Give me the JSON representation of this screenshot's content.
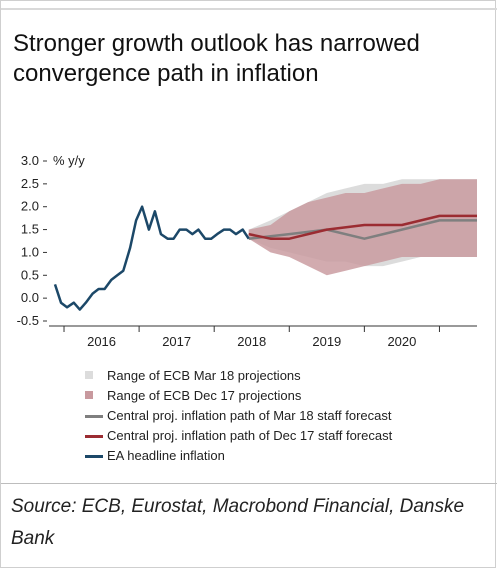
{
  "title": "Stronger growth outlook has narrowed convergence path in inflation",
  "source": "Source: ECB, Eurostat, Macrobond Financial, Danske Bank",
  "colors": {
    "ea_headline": "#1c4868",
    "mar18_central": "#7f7f7f",
    "dec17_central": "#9b2c32",
    "mar18_range": "#dcdcdc",
    "dec17_range": "#c8999e"
  },
  "chart_data": {
    "type": "line",
    "ylabel": "% y/y",
    "ylim": [
      -0.5,
      3.0
    ],
    "yticks": [
      "3.0",
      "2.5",
      "2.0",
      "1.5",
      "1.0",
      "0.5",
      "0.0",
      "-0.5"
    ],
    "ytick_values": [
      3.0,
      2.5,
      2.0,
      1.5,
      1.0,
      0.5,
      0.0,
      -0.5
    ],
    "xlim": [
      2015.3,
      2021.0
    ],
    "xticks": [
      "2016",
      "2017",
      "2018",
      "2019",
      "2020"
    ],
    "grid": false,
    "legend_position": "below",
    "series": [
      {
        "name": "EA headline inflation",
        "kind": "line",
        "color_key": "ea_headline",
        "x": [
          2015.38,
          2015.46,
          2015.54,
          2015.63,
          2015.71,
          2015.79,
          2015.88,
          2015.96,
          2016.04,
          2016.13,
          2016.21,
          2016.29,
          2016.38,
          2016.46,
          2016.54,
          2016.63,
          2016.71,
          2016.79,
          2016.88,
          2016.96,
          2017.04,
          2017.13,
          2017.21,
          2017.29,
          2017.38,
          2017.46,
          2017.54,
          2017.63,
          2017.71,
          2017.79,
          2017.88,
          2017.96
        ],
        "y": [
          0.3,
          -0.1,
          -0.2,
          -0.1,
          -0.25,
          -0.1,
          0.1,
          0.2,
          0.2,
          0.4,
          0.5,
          0.6,
          1.1,
          1.7,
          2.0,
          1.5,
          1.9,
          1.4,
          1.3,
          1.3,
          1.5,
          1.5,
          1.4,
          1.5,
          1.3,
          1.3,
          1.4,
          1.5,
          1.5,
          1.4,
          1.5,
          1.3
        ]
      },
      {
        "name": "Central proj. inflation path of Mar 18 staff forecast",
        "kind": "line",
        "color_key": "mar18_central",
        "x": [
          2017.96,
          2018.5,
          2019.0,
          2019.5,
          2020.0,
          2020.5,
          2021.0
        ],
        "y": [
          1.3,
          1.4,
          1.5,
          1.3,
          1.5,
          1.7,
          1.7
        ]
      },
      {
        "name": "Central proj. inflation path of Dec 17 staff forecast",
        "kind": "line",
        "color_key": "dec17_central",
        "x": [
          2017.96,
          2018.25,
          2018.5,
          2019.0,
          2019.5,
          2020.0,
          2020.5,
          2021.0
        ],
        "y": [
          1.4,
          1.3,
          1.3,
          1.5,
          1.6,
          1.6,
          1.8,
          1.8
        ]
      },
      {
        "name": "Range of ECB Mar 18 projections",
        "kind": "range",
        "color_key": "mar18_range",
        "x": [
          2017.96,
          2018.25,
          2018.5,
          2018.75,
          2019.0,
          2019.25,
          2019.5,
          2019.75,
          2020.0,
          2020.25,
          2020.5,
          2021.0
        ],
        "low": [
          1.3,
          1.1,
          1.0,
          0.9,
          0.8,
          0.8,
          0.7,
          0.7,
          0.8,
          0.9,
          0.9,
          0.9
        ],
        "high": [
          1.5,
          1.7,
          1.9,
          2.1,
          2.3,
          2.4,
          2.5,
          2.5,
          2.6,
          2.6,
          2.6,
          2.6
        ]
      },
      {
        "name": "Range of ECB Dec 17 projections",
        "kind": "range",
        "color_key": "dec17_range",
        "x": [
          2017.96,
          2018.25,
          2018.5,
          2018.75,
          2019.0,
          2019.25,
          2019.5,
          2019.75,
          2020.0,
          2020.25,
          2020.5,
          2021.0
        ],
        "low": [
          1.3,
          1.0,
          0.9,
          0.7,
          0.5,
          0.6,
          0.7,
          0.8,
          0.9,
          0.9,
          0.9,
          0.9
        ],
        "high": [
          1.5,
          1.6,
          1.9,
          2.1,
          2.2,
          2.3,
          2.3,
          2.4,
          2.5,
          2.5,
          2.6,
          2.6
        ]
      }
    ]
  }
}
